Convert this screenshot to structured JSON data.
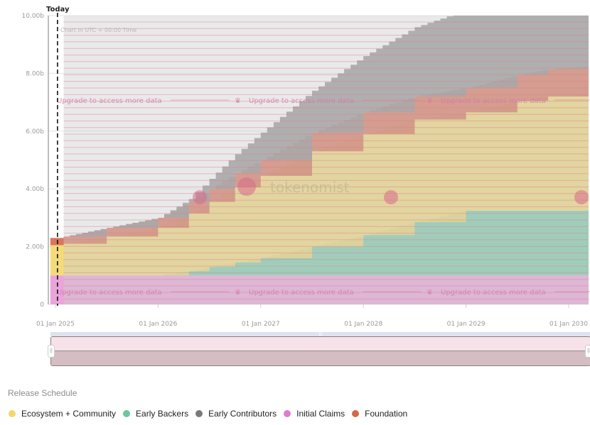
{
  "chart_data": {
    "type": "area",
    "stacked": true,
    "step": true,
    "title": "Release Schedule",
    "xlabel": "",
    "ylabel": "",
    "x": [
      2024.95,
      2025.0,
      2025.08,
      2025.5,
      2026.0,
      2026.3,
      2026.5,
      2026.75,
      2027.0,
      2027.5,
      2028.0,
      2028.5,
      2029.0,
      2029.5,
      2029.8,
      2030.2
    ],
    "x_ticks": [
      "01 Jan 2025",
      "01 Jan 2026",
      "01 Jan 2027",
      "01 Jan 2028",
      "01 Jan 2029",
      "01 Jan 2030"
    ],
    "x_tick_values": [
      2025,
      2026,
      2027,
      2028,
      2029,
      2030
    ],
    "xlim": [
      2024.93,
      2030.18
    ],
    "y_ticks": [
      "0",
      "2.00b",
      "4.00b",
      "6.00b",
      "8.00b",
      "10.00b"
    ],
    "y_tick_values": [
      0,
      2,
      4,
      6,
      8,
      10
    ],
    "ylim": [
      0,
      10
    ],
    "unit": "b",
    "series": [
      {
        "name": "Initial Claims",
        "color": "#e89ad6",
        "values": [
          1.0,
          1.0,
          1.0,
          1.0,
          1.0,
          1.0,
          1.0,
          1.0,
          1.0,
          1.0,
          1.0,
          1.0,
          1.0,
          1.0,
          1.0,
          1.0
        ]
      },
      {
        "name": "Early Backers",
        "color": "#6cc7a0",
        "values": [
          0,
          0,
          0,
          0,
          0,
          0.15,
          0.3,
          0.45,
          0.6,
          1.0,
          1.4,
          1.85,
          2.25,
          2.25,
          2.25,
          2.25
        ]
      },
      {
        "name": "Ecosystem + Community",
        "color": "#f2d76a",
        "values": [
          1.05,
          1.05,
          1.1,
          1.35,
          1.65,
          2.0,
          2.25,
          2.6,
          2.85,
          3.3,
          3.5,
          3.55,
          3.4,
          3.8,
          3.95,
          4.0
        ]
      },
      {
        "name": "Foundation",
        "color": "#d5674a",
        "values": [
          0.25,
          0.25,
          0.25,
          0.3,
          0.35,
          0.4,
          0.45,
          0.5,
          0.55,
          0.65,
          0.75,
          0.8,
          0.85,
          0.9,
          0.95,
          1.0
        ]
      },
      {
        "name": "Early Contributors",
        "color": "#8a8a8a",
        "values": [
          0,
          0,
          0,
          0,
          0,
          0.1,
          0.35,
          0.65,
          0.95,
          1.45,
          1.95,
          2.4,
          2.7,
          2.55,
          2.85,
          2.75
        ]
      }
    ],
    "today": 2025.02,
    "annotations": {
      "today_label": "Today",
      "timezone": "Chart in UTC + 00:00 Time",
      "upgrade": "Upgrade to access more data",
      "watermark": "tokenomist"
    },
    "legend_position": "bottom-left",
    "grid": true
  },
  "legend": {
    "title": "Release Schedule",
    "items": [
      {
        "label": "Ecosystem + Community",
        "color": "#f2d76a"
      },
      {
        "label": "Early Backers",
        "color": "#6cc7a0"
      },
      {
        "label": "Early Contributors",
        "color": "#7a7a7a"
      },
      {
        "label": "Initial Claims",
        "color": "#e07cd0"
      },
      {
        "label": "Foundation",
        "color": "#d5674a"
      }
    ]
  },
  "navigator": {
    "left_handle": "||",
    "right_handle": "||",
    "grip": "|||"
  }
}
